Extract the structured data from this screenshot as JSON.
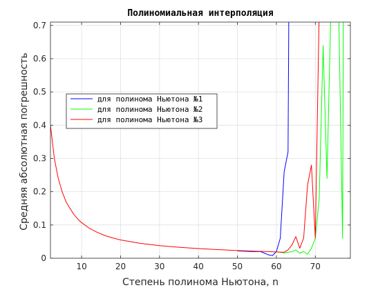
{
  "chart_data": {
    "type": "line",
    "title": "Полиномиальная интерполяция",
    "xlabel": "Степень полинома Ньютона, n",
    "ylabel": "Средняя абсолютная погрешность",
    "xlim": [
      2,
      79
    ],
    "ylim": [
      0,
      0.71
    ],
    "xticks": [
      10,
      20,
      30,
      40,
      50,
      60,
      70
    ],
    "yticks": [
      0,
      0.1,
      0.2,
      0.3,
      0.4,
      0.5,
      0.6,
      0.7
    ],
    "ytick_labels": [
      "0",
      "0.1",
      "0.2",
      "0.3",
      "0.4",
      "0.5",
      "0.6",
      "0.7"
    ],
    "grid": true,
    "legend_position": "center-left",
    "series": [
      {
        "name": "для полинома Ньютона №1",
        "color": "#0000ff",
        "x": [
          50,
          52,
          54,
          55,
          56,
          57,
          58,
          59,
          60,
          61,
          62,
          63,
          63.2
        ],
        "y": [
          0.022,
          0.021,
          0.02,
          0.02,
          0.02,
          0.015,
          0.01,
          0.008,
          0.02,
          0.06,
          0.26,
          0.32,
          0.75
        ]
      },
      {
        "name": "для полинома Ньютона №2",
        "color": "#00ff00",
        "x": [
          60,
          61,
          62,
          63,
          64,
          65,
          66,
          67,
          68,
          69,
          70,
          71,
          72,
          73,
          74,
          74.5,
          75,
          76,
          77,
          77.2
        ],
        "y": [
          0.02,
          0.018,
          0.016,
          0.018,
          0.02,
          0.025,
          0.015,
          0.02,
          0.012,
          0.03,
          0.06,
          0.18,
          0.64,
          0.24,
          0.75,
          0.75,
          0.75,
          0.75,
          0.06,
          0.75
        ]
      },
      {
        "name": "для полинома Ньютона №3",
        "color": "#ff0000",
        "x": [
          2,
          3,
          4,
          5,
          6,
          7,
          8,
          9,
          10,
          12,
          14,
          16,
          18,
          20,
          25,
          30,
          35,
          40,
          45,
          50,
          55,
          58,
          60,
          62,
          63,
          64,
          65,
          66,
          67,
          68,
          69,
          70,
          71
        ],
        "y": [
          0.4,
          0.3,
          0.24,
          0.2,
          0.17,
          0.15,
          0.132,
          0.118,
          0.107,
          0.09,
          0.078,
          0.068,
          0.061,
          0.055,
          0.045,
          0.038,
          0.033,
          0.029,
          0.026,
          0.023,
          0.021,
          0.02,
          0.019,
          0.018,
          0.025,
          0.04,
          0.065,
          0.03,
          0.06,
          0.22,
          0.28,
          0.06,
          0.75
        ]
      }
    ]
  }
}
